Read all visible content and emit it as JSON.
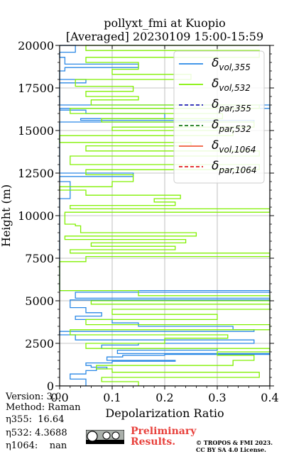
{
  "chart_data": {
    "type": "line",
    "title": "pollyxt_fmi at Kuopio",
    "subtitle": "[Averaged] 20230109 15:00-15:59",
    "xlabel": "Depolarization Ratio",
    "ylabel": "Height (m)",
    "xlim": [
      0,
      0.4
    ],
    "ylim": [
      0,
      20000
    ],
    "xticks": [
      "0.0",
      "0.1",
      "0.2",
      "0.3",
      "0.4"
    ],
    "yticks": [
      "0",
      "2500",
      "5000",
      "7500",
      "10000",
      "12500",
      "15000",
      "17500",
      "20000"
    ],
    "grid": true,
    "legend_position": "top-right",
    "series": [
      {
        "name": "δvol,355",
        "label_base": "δ",
        "label_sub": "vol,355",
        "color": "#2a88e6",
        "dash": "",
        "points": [
          [
            0.05,
            0
          ],
          [
            0.02,
            400
          ],
          [
            0.05,
            700
          ],
          [
            0.07,
            900
          ],
          [
            0.09,
            1000
          ],
          [
            0.06,
            1100
          ],
          [
            0.05,
            1200
          ],
          [
            0.1,
            1350
          ],
          [
            0.22,
            1450
          ],
          [
            0.09,
            1500
          ],
          [
            0.12,
            1700
          ],
          [
            0.2,
            1800
          ],
          [
            0.4,
            1850
          ],
          [
            0.11,
            1900
          ],
          [
            0.11,
            2000
          ],
          [
            0.3,
            2100
          ],
          [
            0.08,
            2200
          ],
          [
            0.15,
            2400
          ],
          [
            0.37,
            2500
          ],
          [
            0.03,
            2700
          ],
          [
            0.0,
            3000
          ],
          [
            0.37,
            3200
          ],
          [
            0.33,
            3300
          ],
          [
            0.15,
            3500
          ],
          [
            0.1,
            3700
          ],
          [
            0.03,
            3900
          ],
          [
            0.08,
            4100
          ],
          [
            0.05,
            4300
          ],
          [
            0.02,
            4600
          ],
          [
            0.4,
            5050
          ],
          [
            0.03,
            5150
          ],
          [
            0.4,
            5500
          ],
          [
            0.0,
            5600
          ],
          [
            0.0,
            7500
          ],
          [
            0.0,
            10500
          ],
          [
            0.02,
            11000
          ],
          [
            0.02,
            11500
          ],
          [
            0.0,
            12000
          ],
          [
            0.14,
            12300
          ],
          [
            0.0,
            12500
          ],
          [
            0.0,
            14000
          ],
          [
            0.37,
            15500
          ],
          [
            0.04,
            15600
          ],
          [
            0.2,
            15700
          ],
          [
            0.05,
            16000
          ],
          [
            0.0,
            16200
          ],
          [
            0.4,
            16300
          ],
          [
            0.0,
            16500
          ],
          [
            0.0,
            17500
          ],
          [
            0.05,
            17800
          ],
          [
            0.0,
            18000
          ],
          [
            0.01,
            18500
          ],
          [
            0.15,
            18700
          ],
          [
            0.01,
            18900
          ],
          [
            0.0,
            19300
          ],
          [
            0.03,
            19600
          ],
          [
            0.0,
            20000
          ]
        ]
      },
      {
        "name": "δvol,532",
        "label_base": "δ",
        "label_sub": "vol,532",
        "color": "#80f000",
        "dash": "",
        "points": [
          [
            0.15,
            0
          ],
          [
            0.08,
            250
          ],
          [
            0.38,
            500
          ],
          [
            0.1,
            800
          ],
          [
            0.07,
            1000
          ],
          [
            0.33,
            1200
          ],
          [
            0.37,
            1500
          ],
          [
            0.3,
            1800
          ],
          [
            0.4,
            2000
          ],
          [
            0.05,
            2200
          ],
          [
            0.2,
            2500
          ],
          [
            0.32,
            2800
          ],
          [
            0.02,
            3000
          ],
          [
            0.4,
            3300
          ],
          [
            0.05,
            3600
          ],
          [
            0.3,
            3900
          ],
          [
            0.1,
            4200
          ],
          [
            0.4,
            4500
          ],
          [
            0.06,
            4800
          ],
          [
            0.4,
            5000
          ],
          [
            0.15,
            5300
          ],
          [
            0.0,
            5600
          ],
          [
            0.0,
            6500
          ],
          [
            0.0,
            7000
          ],
          [
            0.05,
            7300
          ],
          [
            0.4,
            7600
          ],
          [
            0.02,
            7800
          ],
          [
            0.22,
            8000
          ],
          [
            0.06,
            8200
          ],
          [
            0.24,
            8400
          ],
          [
            0.01,
            8600
          ],
          [
            0.26,
            8800
          ],
          [
            0.04,
            9000
          ],
          [
            0.03,
            9400
          ],
          [
            0.01,
            9500
          ],
          [
            0.4,
            10200
          ],
          [
            0.02,
            10400
          ],
          [
            0.22,
            10600
          ],
          [
            0.18,
            10800
          ],
          [
            0.23,
            11000
          ],
          [
            0.05,
            11200
          ],
          [
            0.0,
            11500
          ],
          [
            0.1,
            11700
          ],
          [
            0.14,
            12000
          ],
          [
            0.05,
            12400
          ],
          [
            0.38,
            12700
          ],
          [
            0.02,
            13000
          ],
          [
            0.38,
            13500
          ],
          [
            0.05,
            13800
          ],
          [
            0.25,
            14100
          ],
          [
            0.0,
            14300
          ],
          [
            0.33,
            14700
          ],
          [
            0.1,
            15000
          ],
          [
            0.37,
            15200
          ],
          [
            0.08,
            15500
          ],
          [
            0.31,
            15700
          ],
          [
            0.02,
            16000
          ],
          [
            0.38,
            16300
          ],
          [
            0.06,
            16500
          ],
          [
            0.15,
            16800
          ],
          [
            0.05,
            17000
          ],
          [
            0.14,
            17300
          ],
          [
            0.03,
            17600
          ],
          [
            0.25,
            18000
          ],
          [
            0.1,
            18300
          ],
          [
            0.15,
            18600
          ],
          [
            0.05,
            19000
          ],
          [
            0.38,
            19300
          ],
          [
            0.05,
            19700
          ],
          [
            0.38,
            20000
          ]
        ]
      },
      {
        "name": "δpar,355",
        "label_base": "δ",
        "label_sub": "par,355",
        "color": "#1f1fb4",
        "dash": "5,3",
        "points": []
      },
      {
        "name": "δpar,532",
        "label_base": "δ",
        "label_sub": "par,532",
        "color": "#1a7a1a",
        "dash": "5,3",
        "points": []
      },
      {
        "name": "δvol,1064",
        "label_base": "δ",
        "label_sub": "vol,1064",
        "color": "#f05c3c",
        "dash": "",
        "points": []
      },
      {
        "name": "δpar,1064",
        "label_base": "δ",
        "label_sub": "par,1064",
        "color": "#e01c1c",
        "dash": "5,3",
        "points": []
      }
    ]
  },
  "info": {
    "version": "Version: 3.0",
    "method": "Method: Raman",
    "eta355": "η355:  16.64",
    "eta532": "η532: 4.3688",
    "eta1064": "η1064:    nan"
  },
  "footer": {
    "preliminary_line1": "Preliminary",
    "preliminary_line2": "Results.",
    "copyright_line1": "© TROPOS & FMI 2023.",
    "copyright_line2": "CC BY SA 4.0 License.",
    "cc_logo_text": "cc BY SA"
  }
}
